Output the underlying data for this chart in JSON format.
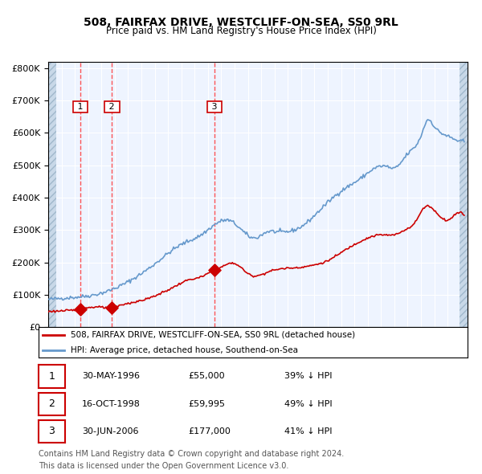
{
  "title": "508, FAIRFAX DRIVE, WESTCLIFF-ON-SEA, SS0 9RL",
  "subtitle": "Price paid vs. HM Land Registry's House Price Index (HPI)",
  "legend_red": "508, FAIRFAX DRIVE, WESTCLIFF-ON-SEA, SS0 9RL (detached house)",
  "legend_blue": "HPI: Average price, detached house, Southend-on-Sea",
  "footer1": "Contains HM Land Registry data © Crown copyright and database right 2024.",
  "footer2": "This data is licensed under the Open Government Licence v3.0.",
  "transactions": [
    {
      "num": 1,
      "date": "30-MAY-1996",
      "price": 55000,
      "pct": "39%",
      "dir": "↓",
      "x": 1996.41
    },
    {
      "num": 2,
      "date": "16-OCT-1998",
      "price": 59995,
      "pct": "49%",
      "dir": "↓",
      "x": 1998.79
    },
    {
      "num": 3,
      "date": "30-JUN-2006",
      "price": 177000,
      "pct": "41%",
      "dir": "↓",
      "x": 2006.5
    }
  ],
  "red_color": "#cc0000",
  "blue_color": "#6699cc",
  "dashed_color": "#ff4444",
  "bg_color": "#ddeeff",
  "plot_bg": "#eef4ff",
  "hatch_color": "#bbccdd",
  "ylim": [
    0,
    820000
  ],
  "xlim_start": 1994.0,
  "xlim_end": 2025.5
}
